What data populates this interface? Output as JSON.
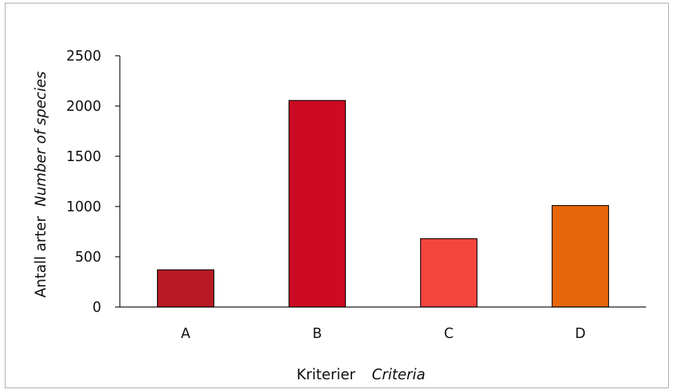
{
  "chart_data": {
    "type": "bar",
    "categories": [
      "A",
      "B",
      "C",
      "D"
    ],
    "values": [
      370,
      2055,
      680,
      1010
    ],
    "colors": [
      "#b81a25",
      "#cc0a22",
      "#f5453f",
      "#e8660a"
    ],
    "ylim": [
      0,
      2500
    ],
    "yticks": [
      0,
      500,
      1000,
      1500,
      2000,
      2500
    ],
    "xlabel": {
      "primary": "Kriterier",
      "secondary": "Criteria"
    },
    "ylabel": {
      "primary": "Antall arter",
      "secondary": "Number of species"
    },
    "grid": false,
    "legend": "none"
  }
}
